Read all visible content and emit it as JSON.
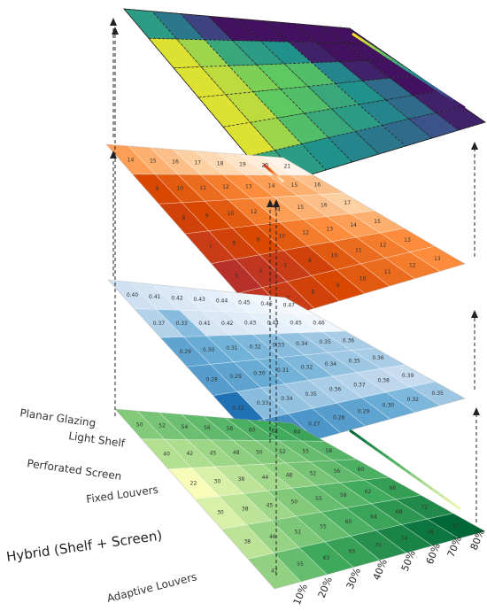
{
  "row_labels": [
    "Planar Glazing",
    "Light Shelf",
    "Perforated Screen",
    "Fixed Louvers",
    "Hybrid (Shelf + Screen)",
    "Adaptive Louvers"
  ],
  "column_labels": [
    "10%",
    "20%",
    "30%",
    "40%",
    "50%",
    "60%",
    "70%",
    "80%"
  ],
  "layers": [
    {
      "id": "top",
      "colormap": "viridis",
      "values": []
    },
    {
      "id": "orange",
      "colormap": "oranges",
      "values": [
        [
          14,
          15,
          16,
          17,
          18,
          19,
          20,
          21
        ],
        [
          9,
          10,
          11,
          12,
          13,
          14,
          15,
          16
        ],
        [
          8,
          9,
          10,
          12,
          14,
          15,
          16,
          17
        ],
        [
          7,
          8,
          9,
          10,
          12,
          13,
          14,
          15
        ],
        [
          5,
          6,
          7,
          8,
          10,
          11,
          12,
          13
        ],
        [
          6,
          7,
          8,
          9,
          10,
          11,
          12,
          13
        ]
      ]
    },
    {
      "id": "blue",
      "colormap": "blues",
      "values": [
        [
          "0.40",
          "0.41",
          "0.42",
          "0.43",
          "0.44",
          "0.45",
          "0.46",
          "0.47"
        ],
        [
          "0.37",
          "0.33",
          "0.41",
          "0.42",
          "0.43",
          "0.44",
          "0.45",
          "0.46"
        ],
        [
          "0.29",
          "0.30",
          "0.31",
          "0.32",
          "0.33",
          "0.34",
          "0.35",
          "0.36"
        ],
        [
          "0.28",
          "0.29",
          "0.30",
          "0.31",
          "0.32",
          "0.34",
          "0.35",
          "0.36"
        ],
        [
          "0.22",
          "0.33",
          "0.34",
          "0.35",
          "0.36",
          "0.37",
          "0.38",
          "0.39"
        ],
        [
          "0.25",
          "0.26",
          "0.27",
          "0.28",
          "0.29",
          "0.30",
          "0.32",
          "0.35"
        ]
      ]
    },
    {
      "id": "green",
      "colormap": "greens",
      "values": [
        [
          50,
          52,
          54,
          56,
          58,
          60,
          62,
          64
        ],
        [
          40,
          42,
          45,
          48,
          50,
          52,
          55,
          58
        ],
        [
          22,
          30,
          38,
          44,
          48,
          52,
          56,
          60
        ],
        [
          30,
          38,
          45,
          50,
          55,
          58,
          62,
          66
        ],
        [
          38,
          46,
          51,
          55,
          60,
          64,
          68,
          72
        ],
        [
          47,
          55,
          63,
          65,
          70,
          74,
          78,
          82
        ]
      ]
    }
  ],
  "colors": {
    "viridis": [
      "#440154",
      "#3b528b",
      "#21918c",
      "#5ec962",
      "#fde725"
    ],
    "oranges": [
      "#fff5eb",
      "#fdd0a2",
      "#fd8d3c",
      "#d94801",
      "#b8302a"
    ],
    "blues": [
      "#f7fbff",
      "#c6dbef",
      "#6baed6",
      "#2171b5"
    ],
    "greens": [
      "#f7fcb9",
      "#addd8e",
      "#41ab5d",
      "#006837"
    ]
  }
}
